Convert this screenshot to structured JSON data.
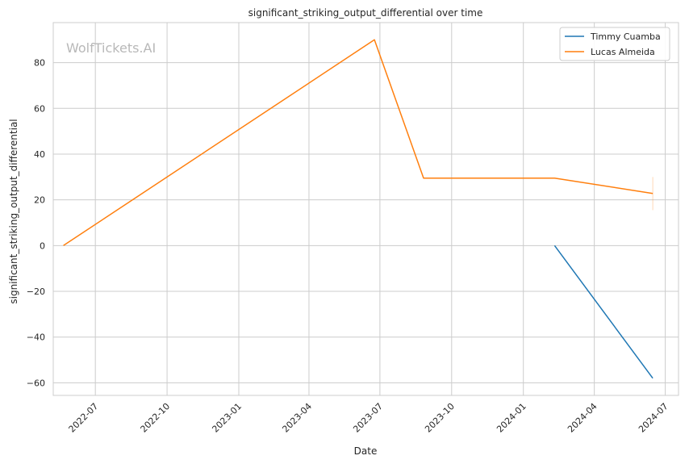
{
  "chart_data": {
    "type": "line",
    "title": "significant_striking_output_differential over time",
    "xlabel": "Date",
    "ylabel": "significant_striking_output_differential",
    "watermark": "WolfTickets.AI",
    "x_ticks": [
      "2022-07",
      "2022-10",
      "2023-01",
      "2023-04",
      "2023-07",
      "2023-10",
      "2024-01",
      "2024-04",
      "2024-07"
    ],
    "y_ticks": [
      -60,
      -40,
      -20,
      0,
      20,
      40,
      60,
      80
    ],
    "xlim": [
      "2022-05-08",
      "2024-07-18"
    ],
    "ylim": [
      -65.5,
      97.5
    ],
    "grid": true,
    "legend_position": "top-right",
    "series": [
      {
        "name": "Timmy Cuamba",
        "color": "#1f77b4",
        "points": [
          {
            "x": "2024-02-10",
            "y": 0
          },
          {
            "x": "2024-06-15",
            "y": -58
          }
        ]
      },
      {
        "name": "Lucas Almeida",
        "color": "#ff7f0e",
        "points": [
          {
            "x": "2022-05-21",
            "y": 0
          },
          {
            "x": "2023-06-24",
            "y": 90
          },
          {
            "x": "2023-08-26",
            "y": 29.5
          },
          {
            "x": "2024-02-10",
            "y": 29.5
          },
          {
            "x": "2024-06-15",
            "y": 22.8
          }
        ],
        "error_bar": {
          "x": "2024-06-15",
          "low": 15.5,
          "high": 30
        }
      }
    ]
  }
}
